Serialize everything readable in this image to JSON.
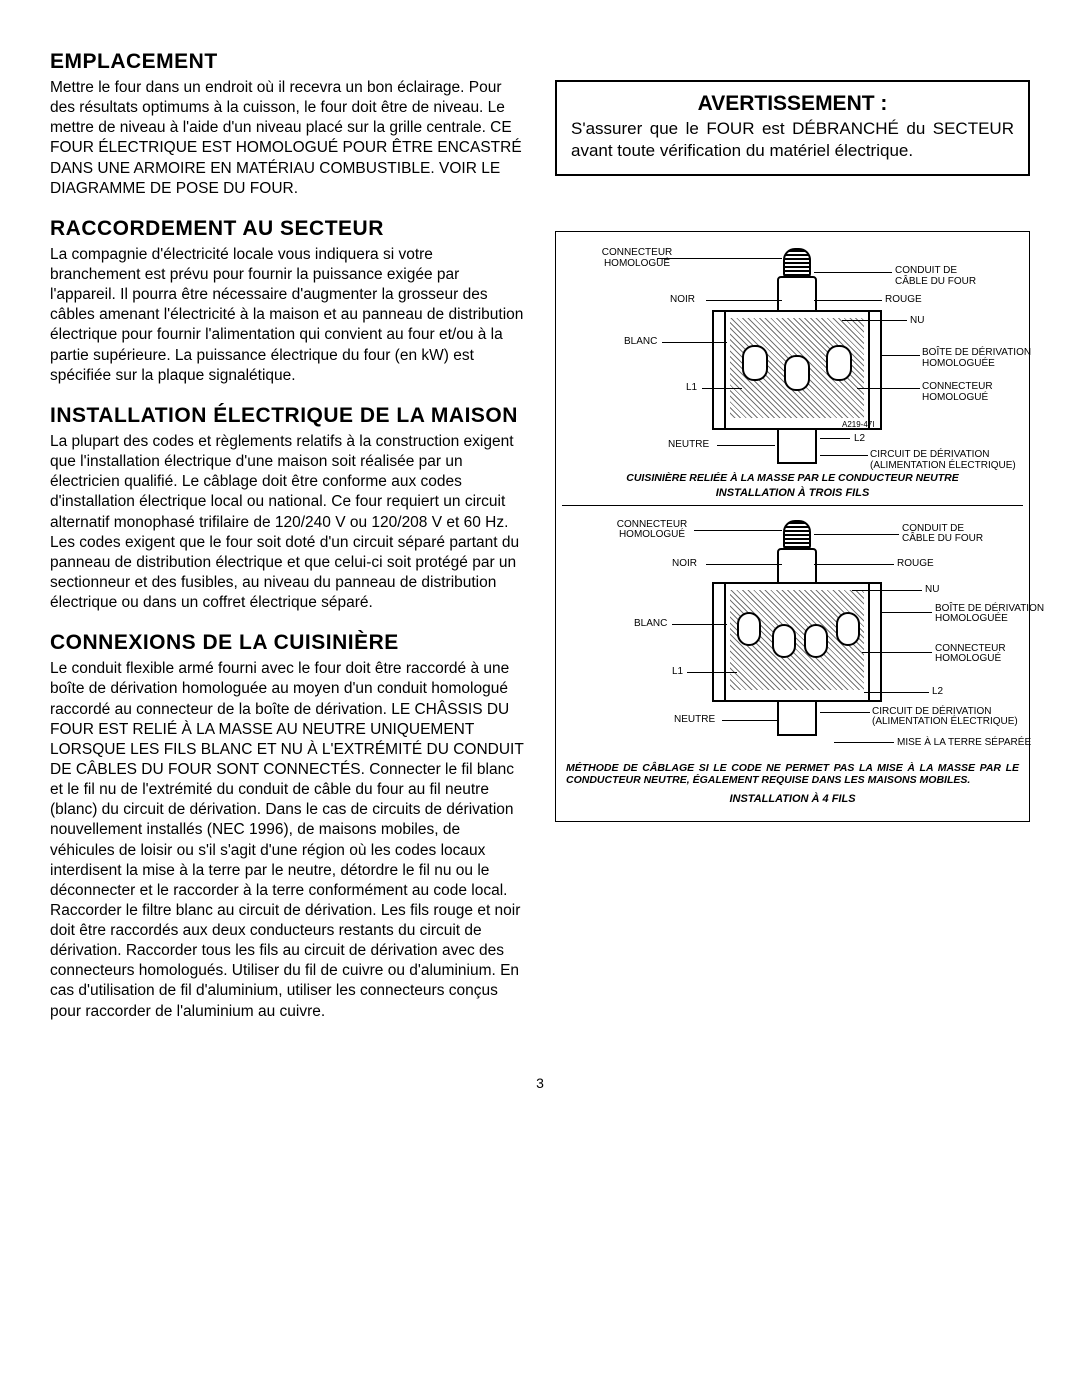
{
  "left_column": {
    "sections": [
      {
        "heading": "EMPLACEMENT",
        "body": "Mettre le four dans un endroit où il recevra un bon éclairage. Pour des résultats optimums à la cuisson, le four doit être de niveau. Le mettre de niveau à l'aide d'un niveau placé sur la grille centrale. CE FOUR ÉLECTRIQUE EST HOMOLOGUÉ POUR ÊTRE ENCASTRÉ DANS UNE ARMOIRE EN MATÉRIAU COMBUSTIBLE. VOIR LE DIAGRAMME DE POSE DU FOUR."
      },
      {
        "heading": "RACCORDEMENT AU SECTEUR",
        "body": "La compagnie d'électricité locale vous indiquera si votre branchement est prévu pour fournir la puissance exigée par l'appareil. Il pourra être nécessaire d'augmenter la grosseur des câbles amenant l'électricité à la maison et au panneau de distribution électrique pour fournir l'alimentation qui convient au four et/ou à la partie supérieure. La puissance électrique du four (en kW) est spécifiée sur la plaque signalétique."
      },
      {
        "heading": "INSTALLATION ÉLECTRIQUE DE LA MAISON",
        "body": "La plupart des codes et règlements relatifs à la construction exigent que l'installation électrique d'une maison soit réalisée par un électricien qualifié. Le câblage doit être conforme aux codes d'installation électrique local ou national. Ce four requiert un circuit alternatif monophasé trifilaire de 120/240 V ou 120/208 V et 60 Hz.    Les codes exigent que le four soit doté d'un circuit séparé partant du panneau de distribution électrique et que celui-ci soit protégé par un sectionneur et des fusibles, au niveau du panneau de distribution électrique ou dans un coffret électrique séparé."
      },
      {
        "heading": "CONNEXIONS DE LA CUISINIÈRE",
        "body": "Le conduit flexible armé fourni avec le four doit être raccordé à une boîte de dérivation homologuée au moyen d'un conduit homologué raccordé au connecteur de la boîte de dérivation. LE CHÂSSIS DU FOUR EST RELIÉ À LA MASSE AU NEUTRE UNIQUEMENT LORSQUE LES FILS BLANC ET NU À L'EXTRÉMITÉ DU CONDUIT DE CÂBLES DU FOUR SONT CONNECTÉS. Connecter le fil blanc et le fil nu de l'extrémité du conduit de câble du four au fil neutre (blanc) du circuit de dérivation. Dans le cas de circuits de dérivation nouvellement installés (NEC 1996), de maisons mobiles, de véhicules de loisir ou s'il s'agit d'une région où les codes locaux interdisent la mise à la terre par le neutre, détordre le fil nu ou le déconnecter et le raccorder à la terre conformément au code local. Raccorder le filtre blanc au circuit de dérivation. Les fils rouge et noir doit être raccordés aux deux conducteurs restants du circuit de dérivation. Raccorder tous les fils au circuit de dérivation avec des connecteurs homologués. Utiliser du fil de cuivre ou d'aluminium. En cas d'utilisation de fil d'aluminium, utiliser les connecteurs conçus pour raccorder de l'aluminium au cuivre."
      }
    ]
  },
  "warning": {
    "title": "AVERTISSEMENT :",
    "text": "S'assurer que le FOUR est DÉBRANCHÉ du SECTEUR avant toute vérification du matériel électrique."
  },
  "diagram1": {
    "labels": {
      "connecteur_top": "CONNECTEUR\nHOMOLOGUÉ",
      "conduit": "CONDUIT DE\nCÂBLE DU FOUR",
      "noir": "NOIR",
      "rouge": "ROUGE",
      "nu": "NU",
      "blanc": "BLANC",
      "boite": "BOÎTE DE DÉRIVATION\nHOMOLOGUÉE",
      "connecteur_mid": "CONNECTEUR\nHOMOLOGUÉ",
      "l1": "L1",
      "l2": "L2",
      "neutre": "NEUTRE",
      "circuit": "CIRCUIT DE DÉRIVATION\n(ALIMENTATION ÉLECTRIQUE)",
      "serial": "A219-47I"
    },
    "caption_line1": "CUISINIÈRE RELIÉE À LA MASSE PAR LE CONDUCTEUR NEUTRE",
    "caption_line2": "INSTALLATION À TROIS FILS"
  },
  "diagram2": {
    "labels": {
      "connecteur_top": "CONNECTEUR\nHOMOLOGUÉ",
      "conduit": "CONDUIT DE\nCÂBLE DU FOUR",
      "noir": "NOIR",
      "rouge": "ROUGE",
      "nu": "NU",
      "blanc": "BLANC",
      "boite": "BOÎTE DE DÉRIVATION\nHOMOLOGUÉE",
      "connecteur_mid": "CONNECTEUR\nHOMOLOGUÉ",
      "l1": "L1",
      "l2": "L2",
      "neutre": "NEUTRE",
      "circuit": "CIRCUIT DE DÉRIVATION\n(ALIMENTATION ÉLECTRIQUE)",
      "ground": "MISE À LA TERRE SÉPARÉE"
    },
    "caption_line1": "MÉTHODE DE CÂBLAGE SI LE CODE NE PERMET PAS LA MISE À LA MASSE PAR LE CONDUCTEUR NEUTRE, ÉGALEMENT REQUISE DANS LES MAISONS MOBILES.",
    "caption_line2": "INSTALLATION À 4 FILS"
  },
  "page_number": "3"
}
